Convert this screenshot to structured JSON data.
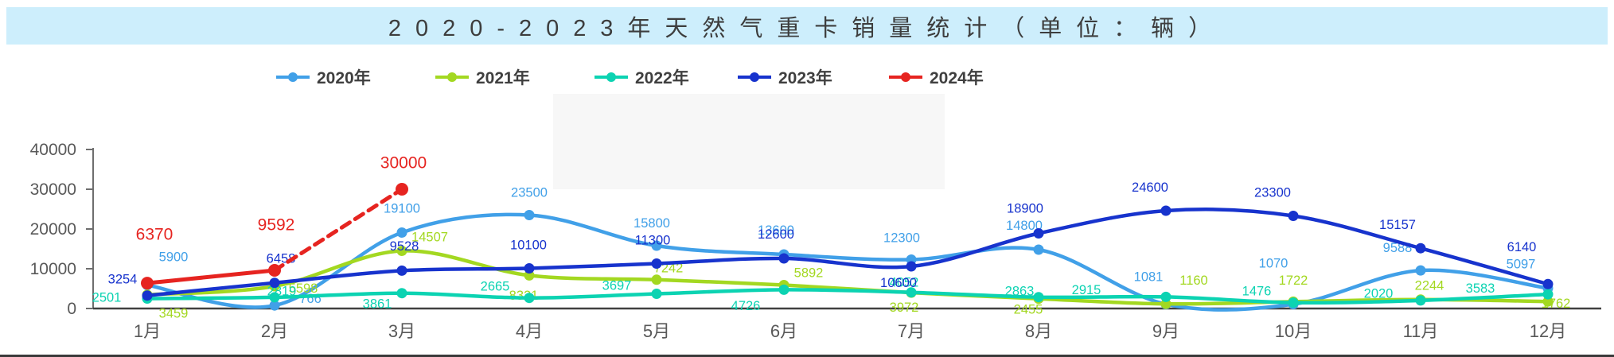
{
  "title_bar": {
    "title": "2020-2023年天然气重卡销量统计（单位：辆）"
  },
  "colors": {
    "title_bar_bg": "#cdeefc",
    "title_text": "#3d3d3d",
    "axis_text": "#595959",
    "x_axis_line": "#404040",
    "y_axis_line": "#6e6e6e",
    "watermark_block": "#f7f7f7"
  },
  "chart_data": {
    "type": "line",
    "title": "2020-2023年天然气重卡销量统计（单位：辆）",
    "categories": [
      "1月",
      "2月",
      "3月",
      "4月",
      "5月",
      "6月",
      "7月",
      "8月",
      "9月",
      "10月",
      "11月",
      "12月"
    ],
    "xlabel": "",
    "ylabel": "",
    "ylim": [
      0,
      40000
    ],
    "ytick_step": 10000,
    "ytick_labels": [
      "0",
      "10000",
      "20000",
      "30000",
      "40000"
    ],
    "grid": false,
    "legend_position": "top",
    "series": [
      {
        "name": "2020年",
        "color": "#41a0e8",
        "style": "solid",
        "values": [
          5900,
          766,
          19100,
          23500,
          15800,
          13600,
          12300,
          14800,
          1081,
          1070,
          9588,
          5097
        ]
      },
      {
        "name": "2021年",
        "color": "#a3d821",
        "style": "solid",
        "values": [
          3459,
          5598,
          14507,
          8321,
          7242,
          5892,
          3972,
          2455,
          1160,
          1722,
          2244,
          1762
        ]
      },
      {
        "name": "2022年",
        "color": "#0cd3b2",
        "style": "solid",
        "values": [
          2501,
          2819,
          3861,
          2665,
          3697,
          4726,
          4052,
          2863,
          2915,
          1476,
          2020,
          3583
        ]
      },
      {
        "name": "2023年",
        "color": "#1733cd",
        "style": "solid",
        "values": [
          3254,
          6458,
          9528,
          10100,
          11300,
          12600,
          10600,
          18900,
          24600,
          23300,
          15157,
          6140
        ]
      },
      {
        "name": "2024年",
        "color": "#e62420",
        "style": "solid_then_dashed",
        "dashed_from": 1,
        "values": [
          6370,
          9592,
          30000
        ]
      }
    ]
  }
}
